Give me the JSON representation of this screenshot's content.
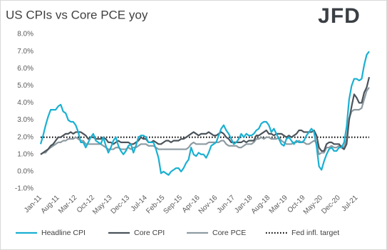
{
  "chart_data": {
    "type": "line",
    "title": "US CPIs vs Core PCE yoy",
    "logo": "JFD",
    "categories": [
      "Jan-11",
      null,
      null,
      null,
      null,
      null,
      null,
      "Aug-11",
      null,
      null,
      null,
      null,
      null,
      null,
      "Mar-12",
      null,
      null,
      null,
      null,
      null,
      null,
      "Oct-12",
      null,
      null,
      null,
      null,
      null,
      null,
      "May-13",
      null,
      null,
      null,
      null,
      null,
      null,
      "Dec-13",
      null,
      null,
      null,
      null,
      null,
      null,
      "Jul-14",
      null,
      null,
      null,
      null,
      null,
      null,
      "Feb-15",
      null,
      null,
      null,
      null,
      null,
      null,
      "Sep-15",
      null,
      null,
      null,
      null,
      null,
      null,
      "Apr-16",
      null,
      null,
      null,
      null,
      null,
      null,
      "Nov-16",
      null,
      null,
      null,
      null,
      null,
      null,
      "Jun-17",
      null,
      null,
      null,
      null,
      null,
      null,
      "Jan-18",
      null,
      null,
      null,
      null,
      null,
      null,
      "Aug-18",
      null,
      null,
      null,
      null,
      null,
      null,
      "Mar-19",
      null,
      null,
      null,
      null,
      null,
      null,
      "Oct-19",
      null,
      null,
      null,
      null,
      null,
      null,
      "May-20",
      null,
      null,
      null,
      null,
      null,
      null,
      "Dec-20",
      null,
      null,
      null,
      null,
      null,
      null,
      "Jul-21",
      null,
      null,
      null,
      null,
      null
    ],
    "series": [
      {
        "name": "Headline CPI",
        "color": "#1ab0d2",
        "values": [
          1.6,
          2.1,
          2.7,
          3.2,
          3.6,
          3.6,
          3.6,
          3.8,
          3.9,
          3.5,
          3.4,
          3.0,
          2.9,
          2.9,
          2.7,
          2.3,
          1.7,
          1.7,
          1.4,
          1.7,
          2.0,
          2.2,
          1.8,
          1.7,
          1.6,
          2.0,
          1.5,
          1.1,
          1.4,
          1.8,
          2.0,
          1.5,
          1.2,
          1.0,
          1.2,
          1.5,
          1.6,
          1.1,
          1.5,
          2.0,
          2.1,
          2.1,
          2.0,
          1.7,
          1.7,
          1.7,
          1.3,
          0.8,
          -0.1,
          0.0,
          -0.1,
          -0.2,
          0.0,
          0.1,
          0.2,
          0.2,
          0.0,
          0.2,
          0.5,
          0.7,
          1.4,
          1.0,
          0.9,
          1.1,
          1.0,
          1.0,
          0.8,
          1.1,
          1.5,
          1.6,
          1.7,
          2.1,
          2.5,
          2.7,
          2.4,
          2.2,
          1.9,
          1.6,
          1.7,
          1.9,
          2.2,
          2.0,
          2.2,
          2.1,
          2.1,
          2.2,
          2.4,
          2.5,
          2.8,
          2.9,
          2.9,
          2.7,
          2.3,
          2.5,
          2.2,
          1.9,
          1.6,
          1.5,
          1.9,
          2.0,
          1.8,
          1.6,
          1.8,
          1.7,
          1.7,
          1.8,
          2.1,
          2.3,
          2.5,
          2.3,
          1.5,
          0.3,
          0.1,
          0.6,
          1.0,
          1.3,
          1.4,
          1.2,
          1.2,
          1.4,
          1.4,
          1.7,
          2.6,
          4.2,
          5.0,
          5.4,
          5.4,
          5.3,
          5.4,
          6.2,
          6.8,
          7.0
        ]
      },
      {
        "name": "Core CPI",
        "color": "#4b545b",
        "values": [
          1.0,
          1.1,
          1.2,
          1.3,
          1.5,
          1.6,
          1.8,
          2.0,
          2.0,
          2.1,
          2.2,
          2.2,
          2.3,
          2.2,
          2.3,
          2.3,
          2.3,
          2.2,
          2.1,
          1.9,
          2.0,
          2.0,
          1.9,
          1.9,
          1.9,
          2.0,
          1.9,
          1.7,
          1.7,
          1.6,
          1.7,
          1.8,
          1.7,
          1.7,
          1.7,
          1.7,
          1.6,
          1.6,
          1.7,
          1.8,
          2.0,
          1.9,
          1.9,
          1.7,
          1.7,
          1.8,
          1.7,
          1.6,
          1.6,
          1.7,
          1.8,
          1.8,
          1.7,
          1.8,
          1.8,
          1.8,
          1.9,
          1.9,
          2.0,
          2.1,
          2.2,
          2.3,
          2.2,
          2.1,
          2.2,
          2.2,
          2.2,
          2.3,
          2.2,
          2.1,
          2.1,
          2.2,
          2.3,
          2.2,
          2.0,
          1.9,
          1.7,
          1.7,
          1.7,
          1.7,
          1.7,
          1.8,
          1.7,
          1.8,
          1.8,
          1.8,
          2.1,
          2.1,
          2.2,
          2.3,
          2.4,
          2.2,
          2.2,
          2.1,
          2.2,
          2.2,
          2.2,
          2.1,
          2.0,
          2.1,
          2.0,
          2.1,
          2.2,
          2.4,
          2.4,
          2.3,
          2.3,
          2.3,
          2.3,
          2.4,
          2.1,
          1.4,
          1.2,
          1.2,
          1.6,
          1.7,
          1.7,
          1.6,
          1.6,
          1.6,
          1.4,
          1.3,
          1.6,
          3.0,
          3.8,
          4.5,
          4.3,
          4.0,
          4.0,
          4.6,
          4.9,
          5.5
        ]
      },
      {
        "name": "Core PCE",
        "color": "#8e9ba1",
        "values": [
          1.0,
          1.1,
          1.1,
          1.3,
          1.4,
          1.5,
          1.6,
          1.7,
          1.7,
          1.8,
          1.8,
          1.9,
          1.9,
          1.9,
          2.0,
          1.9,
          1.8,
          1.8,
          1.6,
          1.6,
          1.6,
          1.6,
          1.6,
          1.6,
          1.6,
          1.5,
          1.4,
          1.3,
          1.3,
          1.3,
          1.4,
          1.4,
          1.3,
          1.3,
          1.3,
          1.4,
          1.3,
          1.4,
          1.4,
          1.5,
          1.6,
          1.6,
          1.6,
          1.5,
          1.5,
          1.5,
          1.4,
          1.3,
          1.3,
          1.3,
          1.3,
          1.3,
          1.3,
          1.3,
          1.3,
          1.3,
          1.3,
          1.3,
          1.3,
          1.4,
          1.6,
          1.7,
          1.6,
          1.6,
          1.6,
          1.6,
          1.6,
          1.7,
          1.7,
          1.7,
          1.7,
          1.7,
          1.8,
          1.8,
          1.6,
          1.5,
          1.5,
          1.5,
          1.5,
          1.4,
          1.4,
          1.5,
          1.6,
          1.6,
          1.6,
          1.7,
          1.9,
          1.9,
          2.0,
          1.9,
          2.0,
          2.0,
          1.9,
          1.9,
          1.9,
          2.0,
          1.8,
          1.7,
          1.6,
          1.6,
          1.6,
          1.7,
          1.7,
          1.8,
          1.7,
          1.7,
          1.6,
          1.6,
          1.7,
          1.8,
          1.7,
          1.0,
          1.1,
          1.1,
          1.4,
          1.4,
          1.5,
          1.4,
          1.4,
          1.5,
          1.5,
          1.4,
          1.9,
          3.1,
          3.5,
          3.6,
          3.6,
          3.6,
          3.7,
          4.2,
          4.7,
          4.9
        ]
      }
    ],
    "reference_lines": [
      {
        "name": "Fed infl. target",
        "value": 2,
        "color": "#000000"
      }
    ],
    "ylim": [
      -1,
      8
    ],
    "yticks": [
      {
        "value": -1,
        "label": "-1.0%"
      },
      {
        "value": 0,
        "label": "0.0%"
      },
      {
        "value": 1,
        "label": "1.0%"
      },
      {
        "value": 2,
        "label": "2.0%"
      },
      {
        "value": 3,
        "label": "3.0%"
      },
      {
        "value": 4,
        "label": "4.0%"
      },
      {
        "value": 5,
        "label": "5.0%"
      },
      {
        "value": 6,
        "label": "6.0%"
      },
      {
        "value": 7,
        "label": "7.0%"
      },
      {
        "value": 8,
        "label": "8.0%"
      }
    ]
  }
}
